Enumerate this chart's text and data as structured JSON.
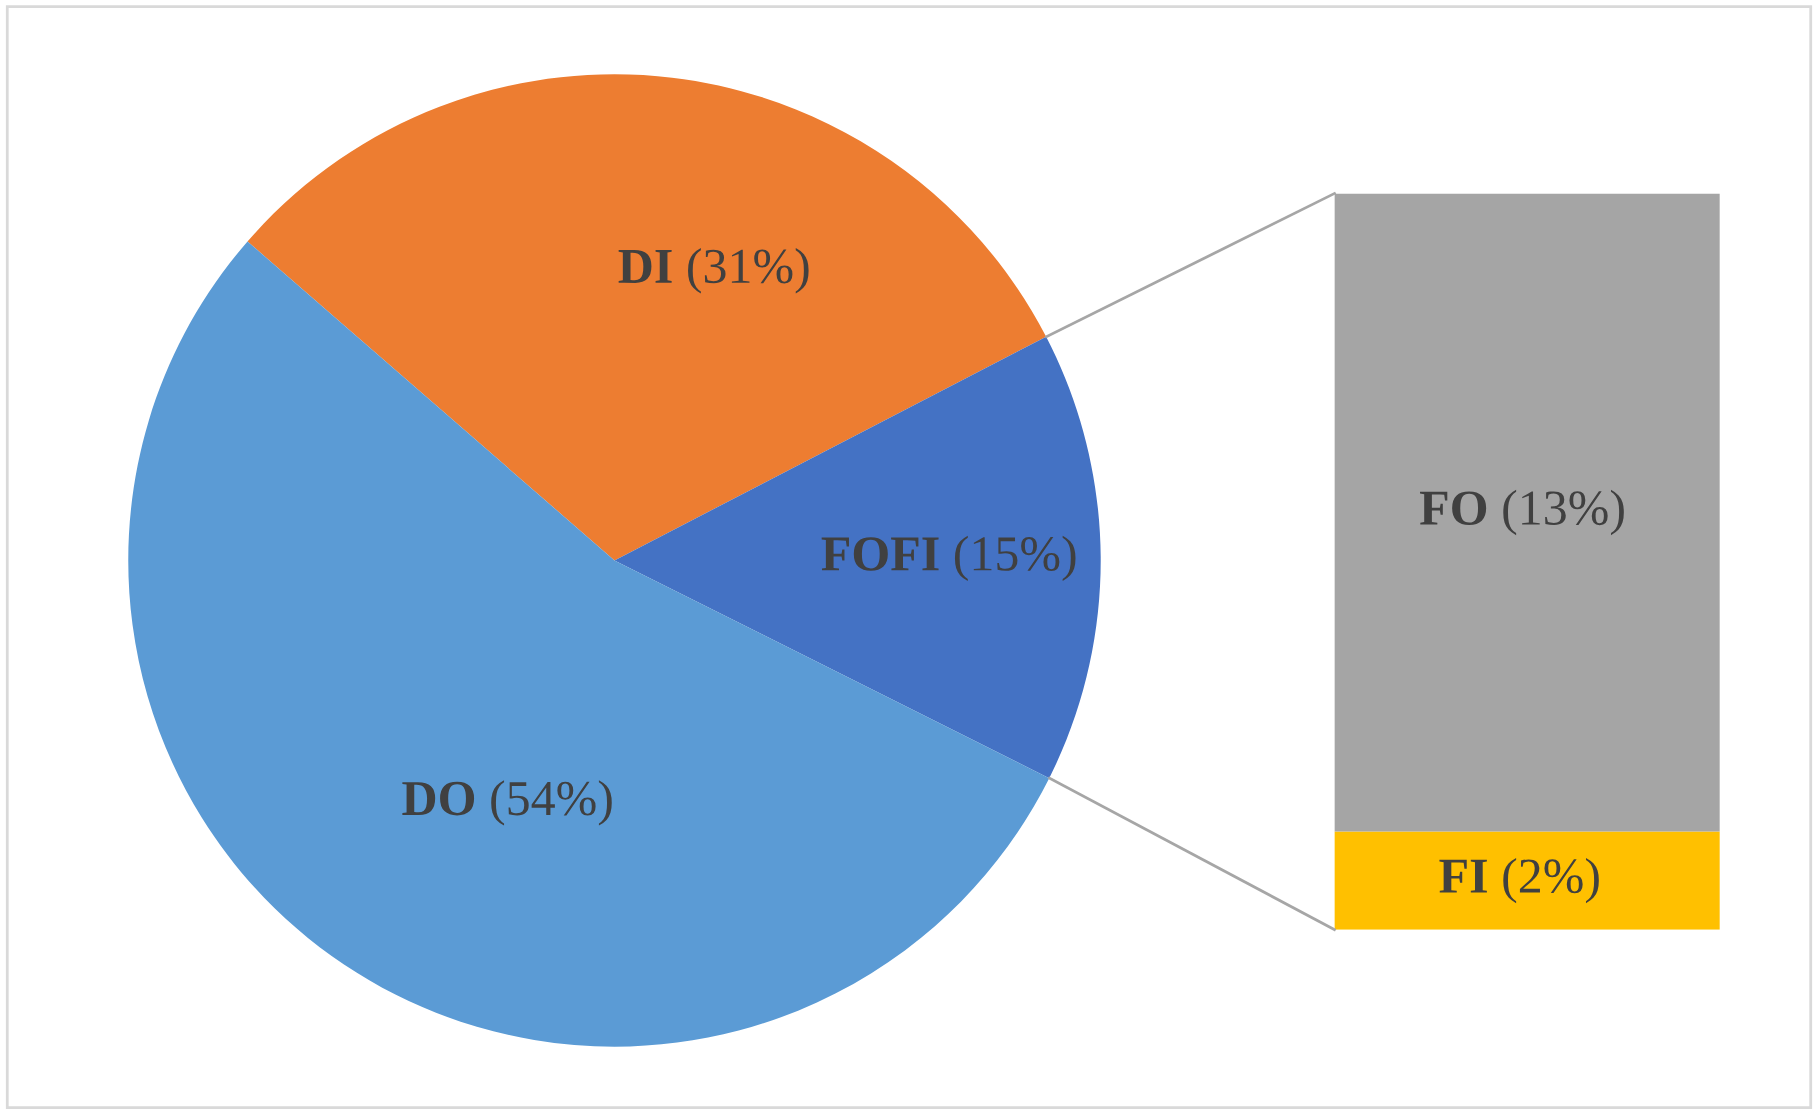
{
  "chart_data": [
    {
      "type": "pie",
      "categories": [
        "DI",
        "FOFI",
        "DO"
      ],
      "values": [
        31,
        15,
        54
      ],
      "colors": [
        "#ed7d31",
        "#4472c4",
        "#5b9bd5"
      ],
      "value_labels": [
        "(31%)",
        "(15%)",
        "(54%)"
      ]
    },
    {
      "type": "bar",
      "stacked": true,
      "categories": [
        null
      ],
      "series": [
        {
          "name": "FI",
          "color": "#ffc000",
          "values": [
            2
          ],
          "value_labels": [
            "(2%)"
          ]
        },
        {
          "name": "FO",
          "color": "#a5a5a5",
          "values": [
            13
          ],
          "value_labels": [
            "(13%)"
          ]
        }
      ]
    }
  ]
}
